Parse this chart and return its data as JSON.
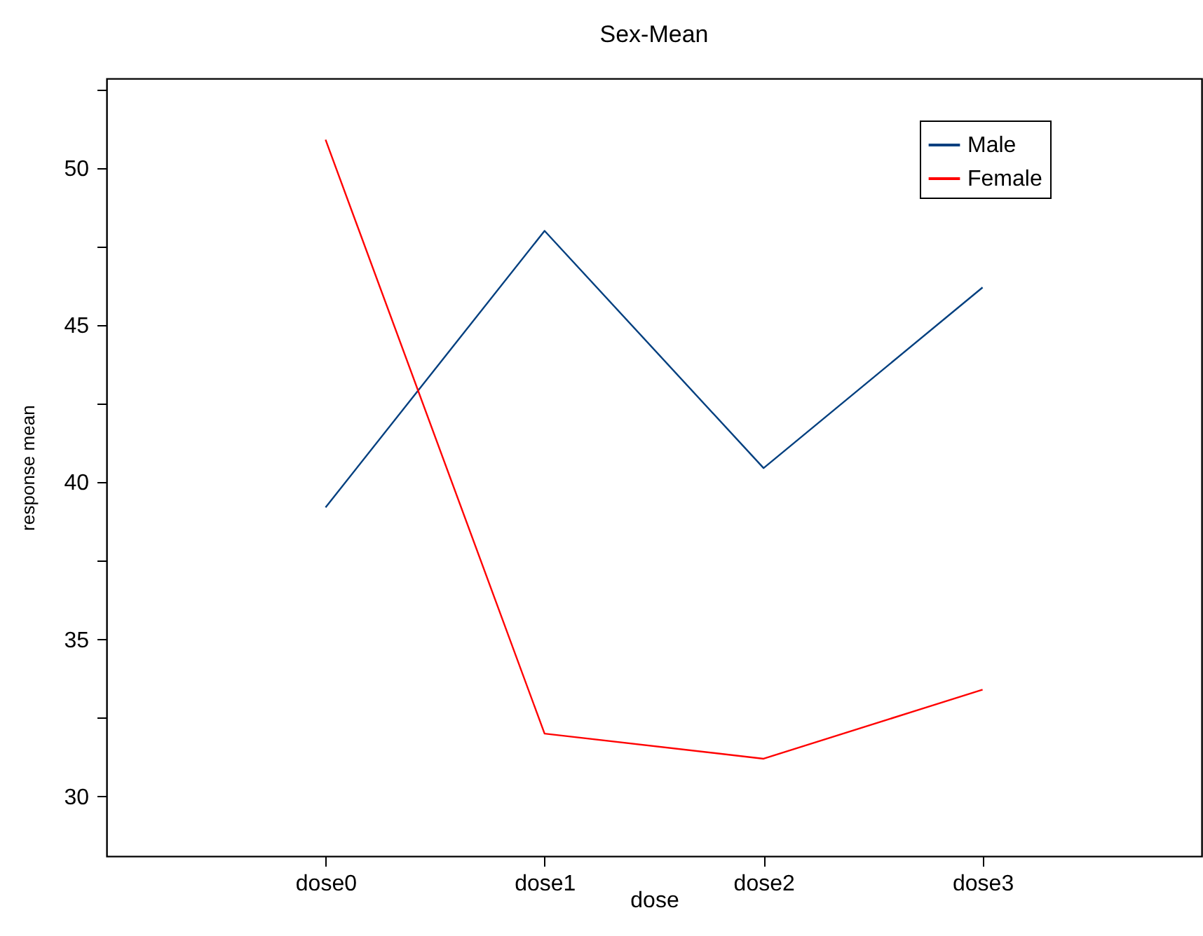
{
  "chart_data": {
    "type": "line",
    "title": "Sex-Mean",
    "xlabel": "dose",
    "ylabel": "response mean",
    "categories": [
      "dose0",
      "dose1",
      "dose2",
      "dose3"
    ],
    "series": [
      {
        "name": "Male",
        "color": "#003f7f",
        "values": [
          39.2,
          48.0,
          40.45,
          46.2
        ]
      },
      {
        "name": "Female",
        "color": "#ff0000",
        "values": [
          50.9,
          32.0,
          31.2,
          33.4
        ]
      }
    ],
    "ylim": [
      28.1,
      52.85
    ],
    "yticks": [
      30,
      {
        "value": 32.5,
        "label": null
      },
      35,
      {
        "value": 37.5,
        "label": null
      },
      40,
      {
        "value": 42.5,
        "label": null
      },
      45,
      {
        "value": 47.5,
        "label": null
      },
      50,
      {
        "value": 52.5,
        "label": null
      }
    ],
    "grid": false,
    "legend": "top right",
    "marker": "none",
    "line_style": "solid"
  }
}
